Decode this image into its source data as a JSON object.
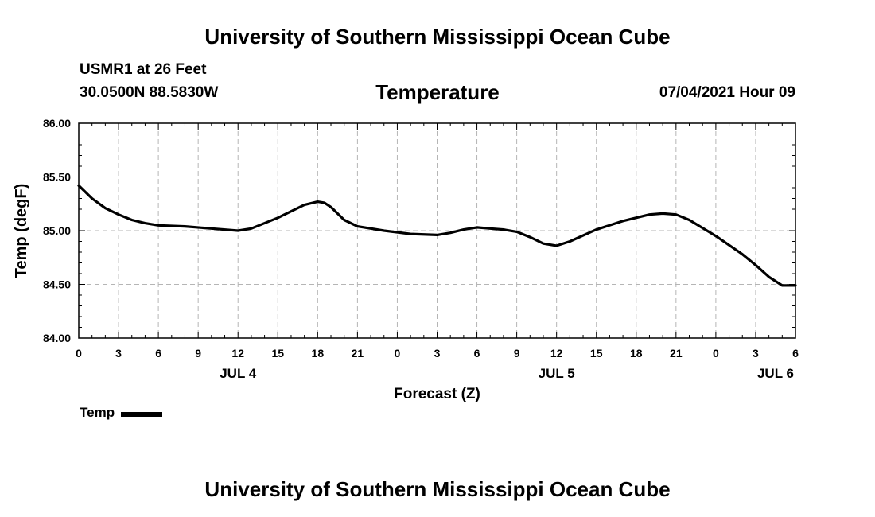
{
  "header": {
    "top_title": "University of Southern Mississippi Ocean Cube",
    "station": "USMR1 at 26 Feet",
    "coords": "30.0500N  88.5830W",
    "datetime": "07/04/2021 Hour 09"
  },
  "footer": {
    "bottom_title": "University of Southern Mississippi Ocean Cube"
  },
  "chart_data": {
    "type": "line",
    "title": "Temperature",
    "xlabel": "Forecast (Z)",
    "ylabel": "Temp (degF)",
    "xlim": [
      0,
      54
    ],
    "ylim": [
      84.0,
      86.0
    ],
    "y_ticks": [
      84.0,
      84.5,
      85.0,
      85.5,
      86.0
    ],
    "y_tick_labels": [
      "84.00",
      "84.50",
      "85.00",
      "85.50",
      "86.00"
    ],
    "x_ticks": [
      0,
      3,
      6,
      9,
      12,
      15,
      18,
      21,
      24,
      27,
      30,
      33,
      36,
      39,
      42,
      45,
      48,
      51,
      54
    ],
    "x_tick_labels": [
      "0",
      "3",
      "6",
      "9",
      "12",
      "15",
      "18",
      "21",
      "0",
      "3",
      "6",
      "9",
      "12",
      "15",
      "18",
      "21",
      "0",
      "3",
      "6"
    ],
    "day_labels": [
      {
        "x": 12,
        "label": "JUL 4"
      },
      {
        "x": 36,
        "label": "JUL 5"
      },
      {
        "x": 52.5,
        "label": "JUL 6"
      }
    ],
    "grid": true,
    "legend_position": "bottom-left",
    "series": [
      {
        "name": "Temp",
        "color": "#000000",
        "x": [
          0,
          1,
          2,
          3,
          4,
          5,
          6,
          8,
          10,
          12,
          13,
          15,
          17,
          18,
          18.5,
          19,
          20,
          21,
          23,
          25,
          27,
          28,
          29,
          30,
          31,
          32,
          33,
          34,
          35,
          36,
          37,
          39,
          41,
          43,
          44,
          45,
          46,
          48,
          50,
          51,
          52,
          53,
          54
        ],
        "values": [
          85.42,
          85.3,
          85.21,
          85.15,
          85.1,
          85.07,
          85.05,
          85.04,
          85.02,
          85.0,
          85.02,
          85.12,
          85.24,
          85.27,
          85.26,
          85.22,
          85.1,
          85.04,
          85.0,
          84.97,
          84.96,
          84.98,
          85.01,
          85.03,
          85.02,
          85.01,
          84.99,
          84.94,
          84.88,
          84.86,
          84.9,
          85.01,
          85.09,
          85.15,
          85.16,
          85.15,
          85.1,
          84.95,
          84.78,
          84.68,
          84.57,
          84.49,
          84.49
        ]
      }
    ]
  }
}
